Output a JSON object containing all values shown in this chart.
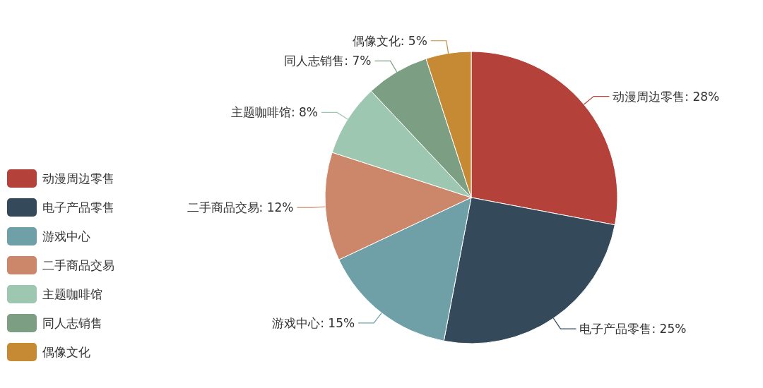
{
  "chart_data": {
    "type": "pie",
    "categories": [
      "动漫周边零售",
      "电子产品零售",
      "游戏中心",
      "二手商品交易",
      "主题咖啡馆",
      "同人志销售",
      "偶像文化"
    ],
    "values": [
      28,
      25,
      15,
      12,
      8,
      7,
      5
    ],
    "value_labels": [
      "动漫周边零售: 28%",
      "电子产品零售: 25%",
      "游戏中心: 15%",
      "二手商品交易: 12%",
      "主题咖啡馆: 8%",
      "同人志销售: 7%",
      "偶像文化: 5%"
    ],
    "colors": [
      "#b5423a",
      "#34495a",
      "#6fa0a8",
      "#cc866a",
      "#9dc7b0",
      "#7c9f84",
      "#c68a35"
    ],
    "legend": "left"
  }
}
